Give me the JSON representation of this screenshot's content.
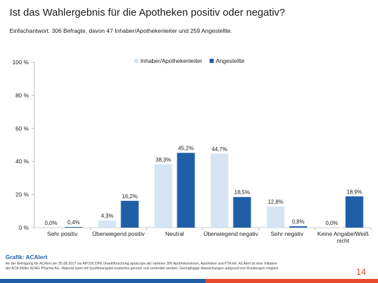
{
  "page": {
    "title": "Ist das Wahlergebnis für die Apotheken positiv oder negativ?",
    "subtitle": "Einfachantwort. 306 Befragte, davon 47 Inhaber/Apothekenleiter und 259 Angestellte.",
    "source_title": "Grafik: ACAlert",
    "source_note": "An der Befragung für ACAlert am 25.09.2017 via APOSCOPE (marktforschung.aposcope.de) nahmen 306 Apothekeninnen, Apotheker und PTA teil. ACAlert ist eine Initiative der ACA Müller ADAG Pharma AG. Material kann mit Quellenangabe kostenlos genutzt und verbreitet werden. Geringfügige Abweichungen aufgrund von Rundungen möglich.",
    "page_number": "14"
  },
  "colors": {
    "series_1": "#d6e4f4",
    "series_2": "#1f5fa8",
    "accent_red": "#e84b2c"
  },
  "chart_data": {
    "type": "bar",
    "categories": [
      "Sehr positiv",
      "Überwiegend positiv",
      "Neutral",
      "Überwiegend negativ",
      "Sehr negativ",
      "Keine Angabe/Weiß nicht"
    ],
    "series": [
      {
        "name": "Inhaber/Apothekenleiter",
        "values": [
          0.0,
          4.3,
          38.3,
          44.7,
          12.8,
          0.0
        ],
        "labels": [
          "0,0%",
          "4,3%",
          "38,3%",
          "44,7%",
          "12,8%",
          "0,0%"
        ]
      },
      {
        "name": "Angestellte",
        "values": [
          0.4,
          16.2,
          45.2,
          18.5,
          0.8,
          18.9
        ],
        "labels": [
          "0,4%",
          "16,2%",
          "45,2%",
          "18,5%",
          "0,8%",
          "18,9%"
        ]
      }
    ],
    "ylim": [
      0,
      100
    ],
    "yticks": [
      0,
      20,
      40,
      60,
      80,
      100
    ],
    "ytick_labels": [
      "0 %",
      "20 %",
      "40 %",
      "60 %",
      "80 %",
      "100 %"
    ],
    "legend_position": "top-center",
    "grid": false
  }
}
